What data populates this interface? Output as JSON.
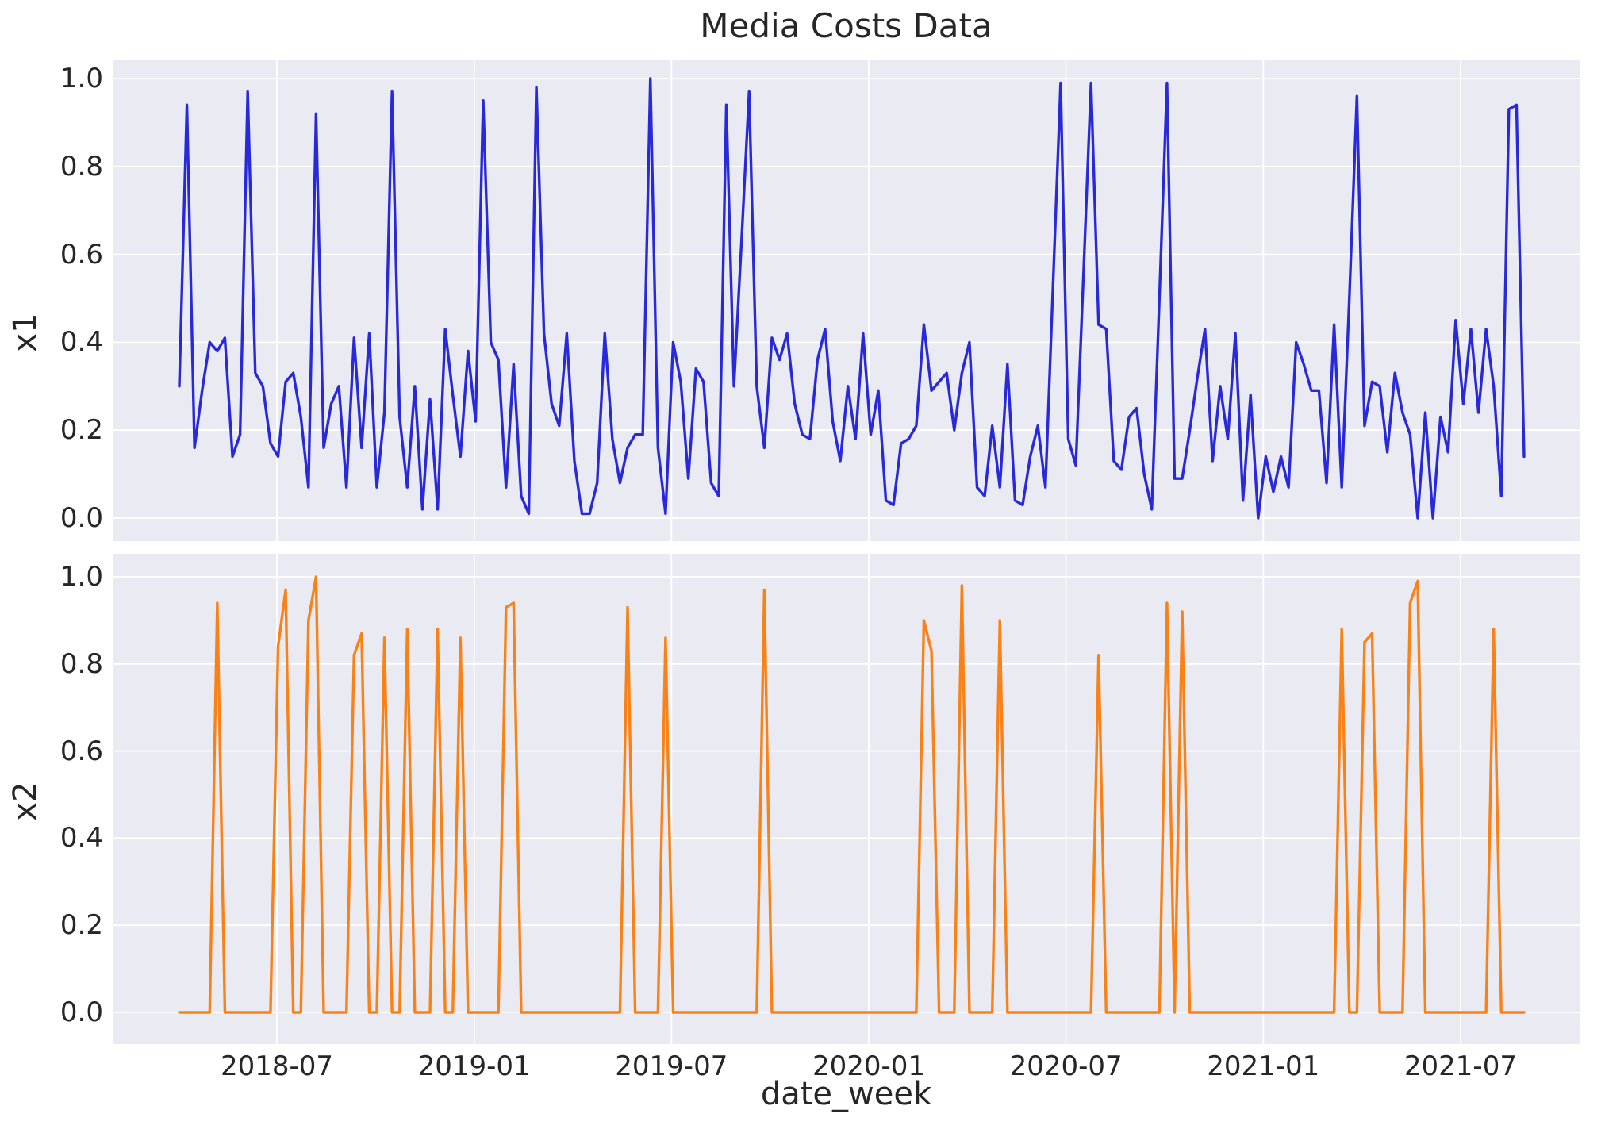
{
  "figure": {
    "title": "Media Costs Data",
    "xlabel": "date_week",
    "background_color": "#ffffff",
    "axes_background_color": "#eaeaf2",
    "grid_color": "#ffffff",
    "text_color": "#262626"
  },
  "x_axis": {
    "label": "date_week",
    "tick_labels": [
      "2018-07",
      "2019-01",
      "2019-07",
      "2020-01",
      "2020-07",
      "2021-01",
      "2021-07"
    ]
  },
  "y_axis": {
    "tick_labels": [
      "1.0",
      "0.8",
      "0.6",
      "0.4",
      "0.2",
      "0.0"
    ]
  },
  "chart_data": [
    {
      "type": "line",
      "name": "x1",
      "ylabel": "x1",
      "color": "#2929dc",
      "ylim": [
        0.0,
        1.0
      ],
      "grid": true,
      "legend": false,
      "x_start_date": "2018-04-02",
      "x_step_days": 7,
      "n_points": 178,
      "values": [
        0.3,
        0.94,
        0.16,
        0.29,
        0.4,
        0.38,
        0.41,
        0.14,
        0.19,
        0.97,
        0.33,
        0.3,
        0.17,
        0.14,
        0.31,
        0.33,
        0.23,
        0.07,
        0.92,
        0.16,
        0.26,
        0.3,
        0.07,
        0.41,
        0.16,
        0.42,
        0.07,
        0.24,
        0.97,
        0.23,
        0.07,
        0.3,
        0.02,
        0.27,
        0.02,
        0.43,
        0.28,
        0.14,
        0.38,
        0.22,
        0.95,
        0.4,
        0.36,
        0.07,
        0.35,
        0.05,
        0.01,
        0.98,
        0.42,
        0.26,
        0.21,
        0.42,
        0.13,
        0.01,
        0.01,
        0.08,
        0.42,
        0.18,
        0.08,
        0.16,
        0.19,
        0.19,
        1.0,
        0.16,
        0.01,
        0.4,
        0.31,
        0.09,
        0.34,
        0.31,
        0.08,
        0.05,
        0.94,
        0.3,
        0.63,
        0.97,
        0.3,
        0.16,
        0.41,
        0.36,
        0.42,
        0.26,
        0.19,
        0.18,
        0.36,
        0.43,
        0.22,
        0.13,
        0.3,
        0.18,
        0.42,
        0.19,
        0.29,
        0.04,
        0.03,
        0.17,
        0.18,
        0.21,
        0.44,
        0.29,
        0.31,
        0.33,
        0.2,
        0.33,
        0.4,
        0.07,
        0.05,
        0.21,
        0.07,
        0.35,
        0.04,
        0.03,
        0.14,
        0.21,
        0.07,
        0.53,
        0.99,
        0.18,
        0.12,
        0.55,
        0.99,
        0.44,
        0.43,
        0.13,
        0.11,
        0.23,
        0.25,
        0.1,
        0.02,
        0.5,
        0.99,
        0.09,
        0.09,
        0.2,
        0.32,
        0.43,
        0.13,
        0.3,
        0.18,
        0.42,
        0.04,
        0.28,
        0.0,
        0.14,
        0.06,
        0.14,
        0.07,
        0.4,
        0.35,
        0.29,
        0.29,
        0.08,
        0.44,
        0.07,
        0.5,
        0.96,
        0.21,
        0.31,
        0.3,
        0.15,
        0.33,
        0.24,
        0.19,
        0.0,
        0.24,
        0.0,
        0.23,
        0.15,
        0.45,
        0.26,
        0.43,
        0.24,
        0.43,
        0.3,
        0.05,
        0.93,
        0.94,
        0.14
      ]
    },
    {
      "type": "line",
      "name": "x2",
      "ylabel": "x2",
      "color": "#f98116",
      "ylim": [
        0.0,
        1.0
      ],
      "grid": true,
      "legend": false,
      "x_start_date": "2018-04-02",
      "x_step_days": 7,
      "n_points": 178,
      "values": [
        0,
        0,
        0,
        0,
        0,
        0.94,
        0,
        0,
        0,
        0,
        0,
        0,
        0,
        0.84,
        0.97,
        0,
        0,
        0.9,
        1.0,
        0,
        0,
        0,
        0,
        0.82,
        0.87,
        0,
        0,
        0.86,
        0,
        0,
        0.88,
        0,
        0,
        0,
        0.88,
        0,
        0,
        0.86,
        0,
        0,
        0,
        0,
        0,
        0.93,
        0.94,
        0,
        0,
        0,
        0,
        0,
        0,
        0,
        0,
        0,
        0,
        0,
        0,
        0,
        0,
        0.93,
        0,
        0,
        0,
        0,
        0.86,
        0,
        0,
        0,
        0,
        0,
        0,
        0,
        0,
        0,
        0,
        0,
        0,
        0.97,
        0,
        0,
        0,
        0,
        0,
        0,
        0,
        0,
        0,
        0,
        0,
        0,
        0,
        0,
        0,
        0,
        0,
        0,
        0,
        0,
        0.9,
        0.83,
        0,
        0,
        0,
        0.98,
        0,
        0,
        0,
        0,
        0.9,
        0,
        0,
        0,
        0,
        0,
        0,
        0,
        0,
        0,
        0,
        0,
        0,
        0.82,
        0,
        0,
        0,
        0,
        0,
        0,
        0,
        0,
        0.94,
        0,
        0.92,
        0,
        0,
        0,
        0,
        0,
        0,
        0,
        0,
        0,
        0,
        0,
        0,
        0,
        0,
        0,
        0,
        0,
        0,
        0,
        0,
        0.88,
        0,
        0,
        0.85,
        0.87,
        0,
        0,
        0,
        0,
        0.94,
        0.99,
        0,
        0,
        0,
        0,
        0,
        0,
        0,
        0,
        0,
        0.88,
        0,
        0,
        0,
        0
      ]
    }
  ]
}
